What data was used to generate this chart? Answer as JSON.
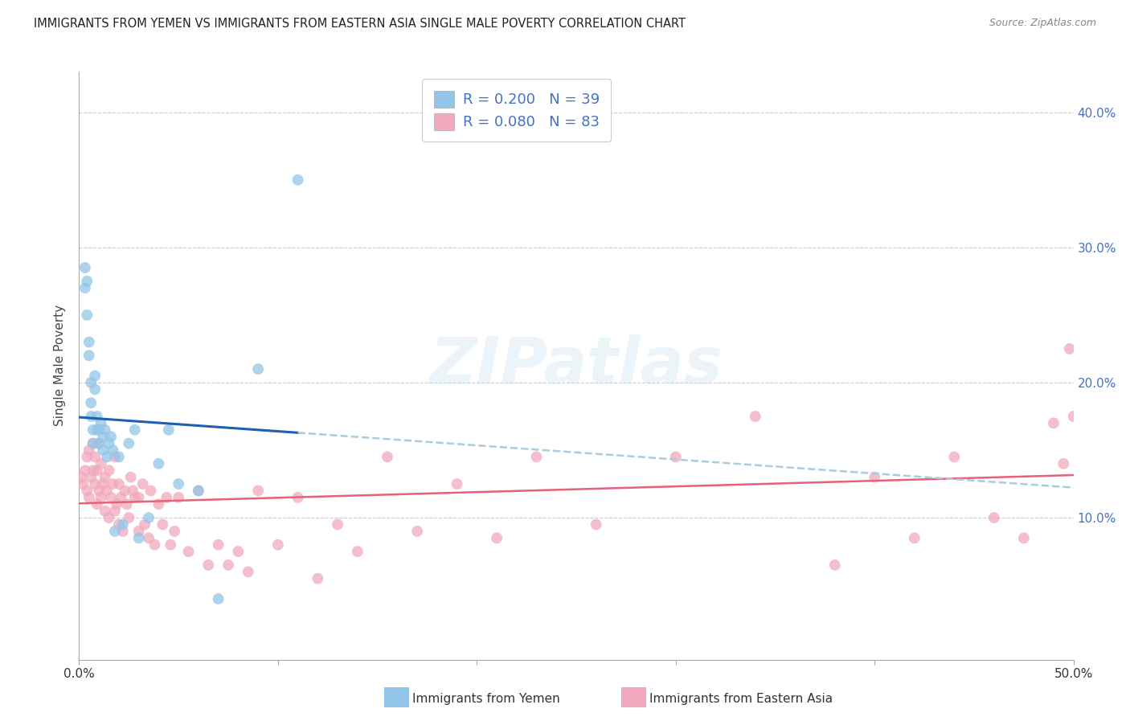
{
  "title": "IMMIGRANTS FROM YEMEN VS IMMIGRANTS FROM EASTERN ASIA SINGLE MALE POVERTY CORRELATION CHART",
  "source": "Source: ZipAtlas.com",
  "ylabel": "Single Male Poverty",
  "xlim": [
    0.0,
    0.5
  ],
  "ylim": [
    -0.005,
    0.43
  ],
  "yticks": [
    0.1,
    0.2,
    0.3,
    0.4
  ],
  "ytick_labels": [
    "10.0%",
    "20.0%",
    "30.0%",
    "40.0%"
  ],
  "xticks": [
    0.0,
    0.1,
    0.2,
    0.3,
    0.4,
    0.5
  ],
  "xtick_labels": [
    "0.0%",
    "",
    "",
    "",
    "",
    "50.0%"
  ],
  "series1_label": "Immigrants from Yemen",
  "series2_label": "Immigrants from Eastern Asia",
  "series1_R": 0.2,
  "series1_N": 39,
  "series2_R": 0.08,
  "series2_N": 83,
  "series1_color": "#92C5E8",
  "series2_color": "#F2A8BC",
  "series1_line_color": "#1F5FAD",
  "series1_dash_color": "#AACCDD",
  "series2_line_color": "#E8607A",
  "watermark": "ZIPatlas",
  "series1_x": [
    0.003,
    0.003,
    0.004,
    0.004,
    0.005,
    0.005,
    0.006,
    0.006,
    0.006,
    0.007,
    0.007,
    0.008,
    0.008,
    0.009,
    0.009,
    0.01,
    0.01,
    0.011,
    0.012,
    0.012,
    0.013,
    0.014,
    0.015,
    0.016,
    0.017,
    0.018,
    0.02,
    0.022,
    0.025,
    0.028,
    0.03,
    0.035,
    0.04,
    0.045,
    0.05,
    0.06,
    0.07,
    0.09,
    0.11
  ],
  "series1_y": [
    0.27,
    0.285,
    0.25,
    0.275,
    0.22,
    0.23,
    0.175,
    0.185,
    0.2,
    0.155,
    0.165,
    0.195,
    0.205,
    0.165,
    0.175,
    0.155,
    0.165,
    0.17,
    0.15,
    0.16,
    0.165,
    0.145,
    0.155,
    0.16,
    0.15,
    0.09,
    0.145,
    0.095,
    0.155,
    0.165,
    0.085,
    0.1,
    0.14,
    0.165,
    0.125,
    0.12,
    0.04,
    0.21,
    0.35
  ],
  "series2_x": [
    0.001,
    0.002,
    0.003,
    0.004,
    0.004,
    0.005,
    0.005,
    0.006,
    0.007,
    0.007,
    0.008,
    0.008,
    0.009,
    0.009,
    0.01,
    0.01,
    0.011,
    0.011,
    0.012,
    0.013,
    0.013,
    0.014,
    0.015,
    0.015,
    0.016,
    0.017,
    0.018,
    0.018,
    0.019,
    0.02,
    0.02,
    0.021,
    0.022,
    0.023,
    0.024,
    0.025,
    0.026,
    0.027,
    0.028,
    0.03,
    0.03,
    0.032,
    0.033,
    0.035,
    0.036,
    0.038,
    0.04,
    0.042,
    0.044,
    0.046,
    0.048,
    0.05,
    0.055,
    0.06,
    0.065,
    0.07,
    0.075,
    0.08,
    0.085,
    0.09,
    0.1,
    0.11,
    0.12,
    0.13,
    0.14,
    0.155,
    0.17,
    0.19,
    0.21,
    0.23,
    0.26,
    0.3,
    0.34,
    0.38,
    0.4,
    0.42,
    0.44,
    0.46,
    0.475,
    0.49,
    0.495,
    0.498,
    0.5
  ],
  "series2_y": [
    0.13,
    0.125,
    0.135,
    0.12,
    0.145,
    0.115,
    0.15,
    0.13,
    0.135,
    0.155,
    0.125,
    0.145,
    0.11,
    0.135,
    0.12,
    0.155,
    0.115,
    0.14,
    0.125,
    0.105,
    0.13,
    0.12,
    0.1,
    0.135,
    0.115,
    0.125,
    0.105,
    0.145,
    0.11,
    0.095,
    0.125,
    0.115,
    0.09,
    0.12,
    0.11,
    0.1,
    0.13,
    0.12,
    0.115,
    0.09,
    0.115,
    0.125,
    0.095,
    0.085,
    0.12,
    0.08,
    0.11,
    0.095,
    0.115,
    0.08,
    0.09,
    0.115,
    0.075,
    0.12,
    0.065,
    0.08,
    0.065,
    0.075,
    0.06,
    0.12,
    0.08,
    0.115,
    0.055,
    0.095,
    0.075,
    0.145,
    0.09,
    0.125,
    0.085,
    0.145,
    0.095,
    0.145,
    0.175,
    0.065,
    0.13,
    0.085,
    0.145,
    0.1,
    0.085,
    0.17,
    0.14,
    0.225,
    0.175
  ]
}
